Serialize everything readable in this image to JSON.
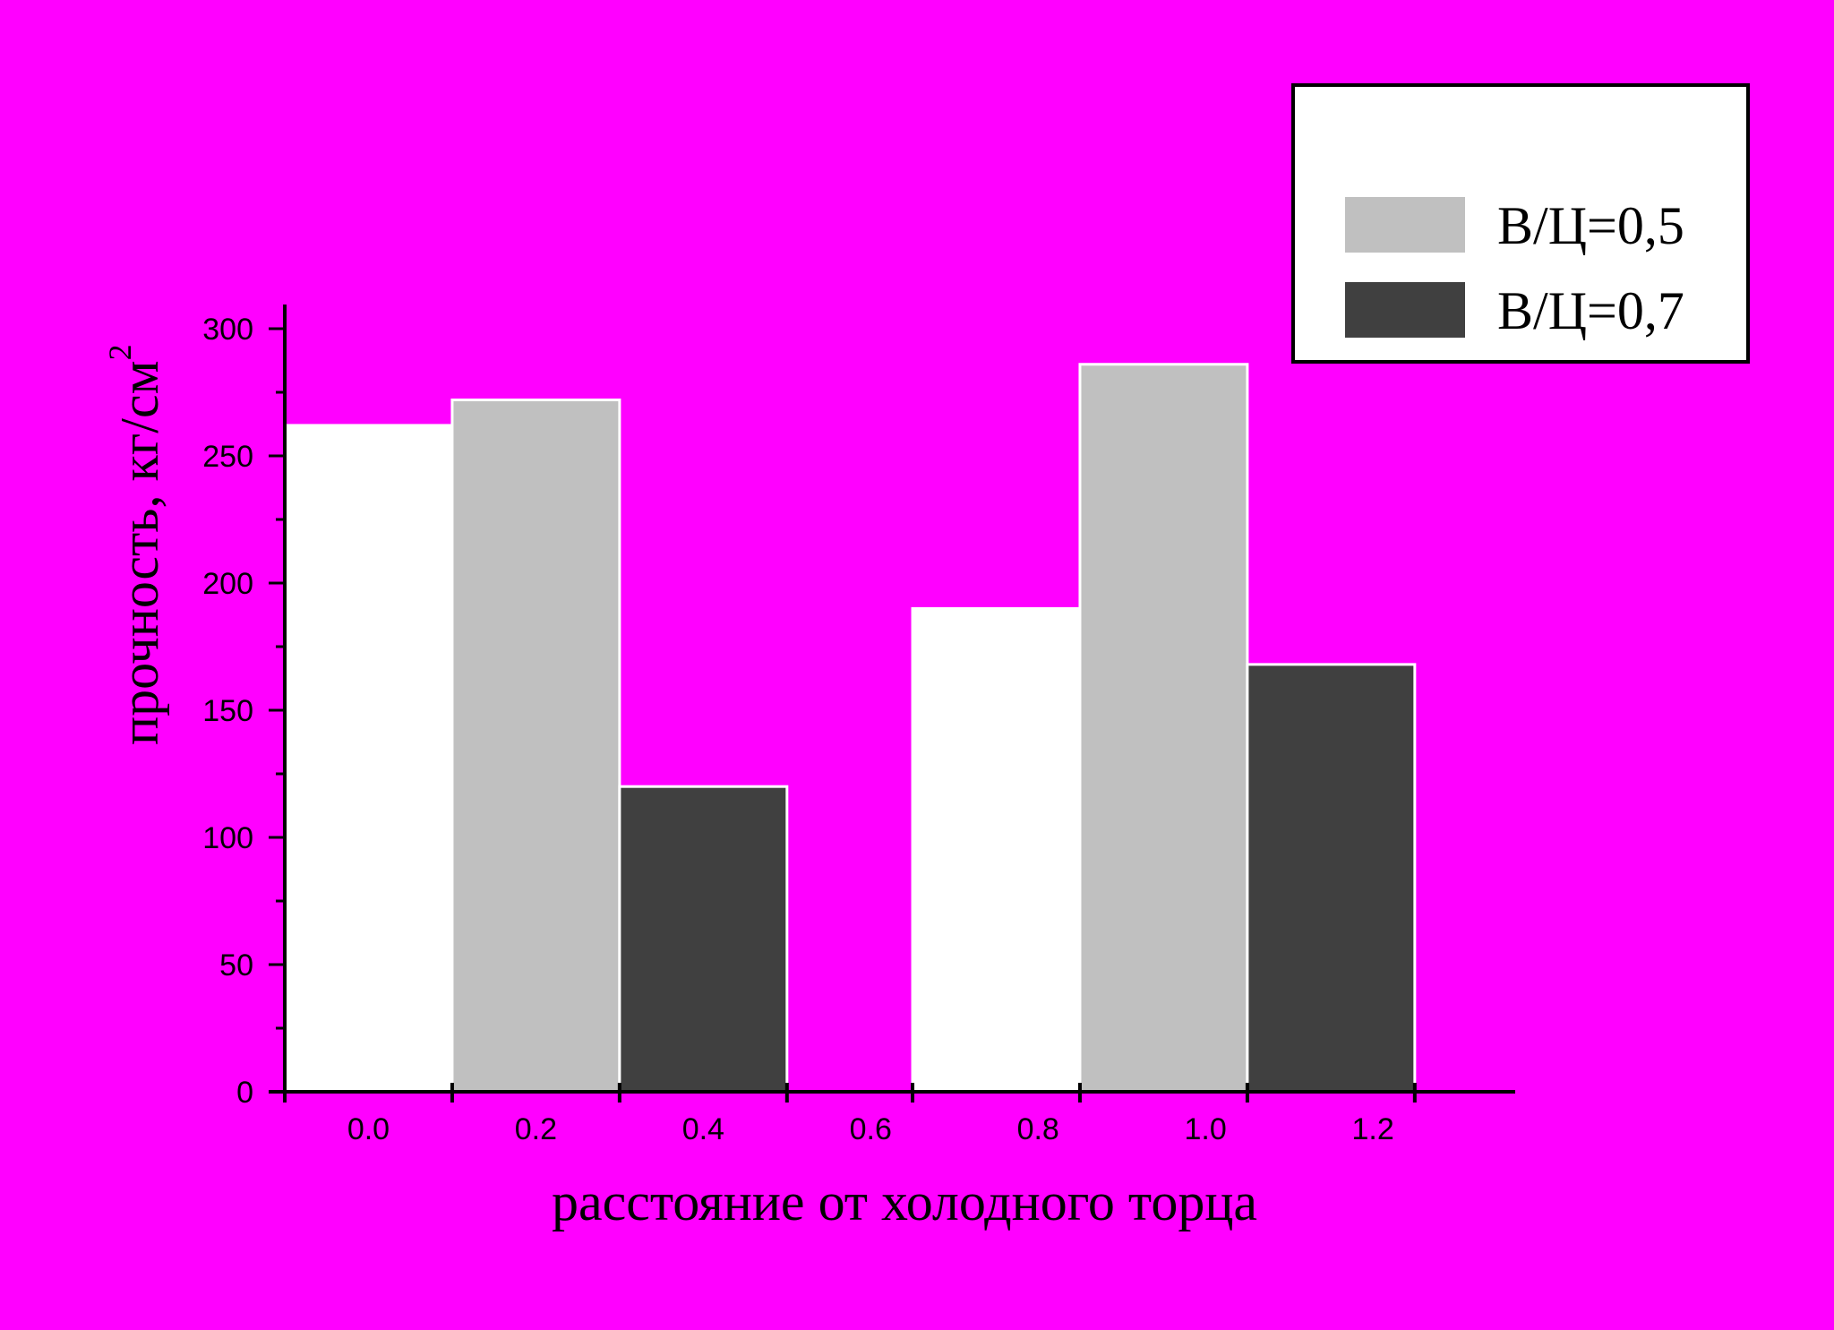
{
  "chart_data": {
    "type": "bar",
    "xlabel": "расстояние от холодного торца",
    "ylabel": "прочность, кг/см",
    "ylabel_superscript": "2",
    "xlim": [
      -0.1,
      1.37
    ],
    "ylim": [
      0,
      300
    ],
    "x_ticks": [
      0.0,
      0.2,
      0.4,
      0.6,
      0.8,
      1.0,
      1.2
    ],
    "x_tick_labels": [
      "0.0",
      "0.2",
      "0.4",
      "0.6",
      "0.8",
      "1.0",
      "1.2"
    ],
    "y_ticks": [
      0,
      50,
      100,
      150,
      200,
      250,
      300
    ],
    "y_tick_labels": [
      "0",
      "50",
      "100",
      "150",
      "200",
      "250",
      "300"
    ],
    "bar_width": 0.2,
    "grid": false,
    "legend_position": "top-right",
    "series": [
      {
        "color": "#ffffff",
        "stroke": "#ffffff",
        "x": [
          0.0,
          0.75
        ],
        "values": [
          262,
          190
        ]
      },
      {
        "name": "В/Ц=0,5",
        "color": "#c0c0c0",
        "stroke": "#ffffff",
        "x": [
          0.2,
          0.95
        ],
        "values": [
          272,
          286
        ]
      },
      {
        "name": "В/Ц=0,7",
        "color": "#404040",
        "stroke": "#ffffff",
        "x": [
          0.4,
          1.15
        ],
        "values": [
          120,
          168
        ]
      }
    ]
  },
  "colors": {
    "background": "#ff00ff",
    "axis": "#000000",
    "legend_bg": "#ffffff"
  }
}
